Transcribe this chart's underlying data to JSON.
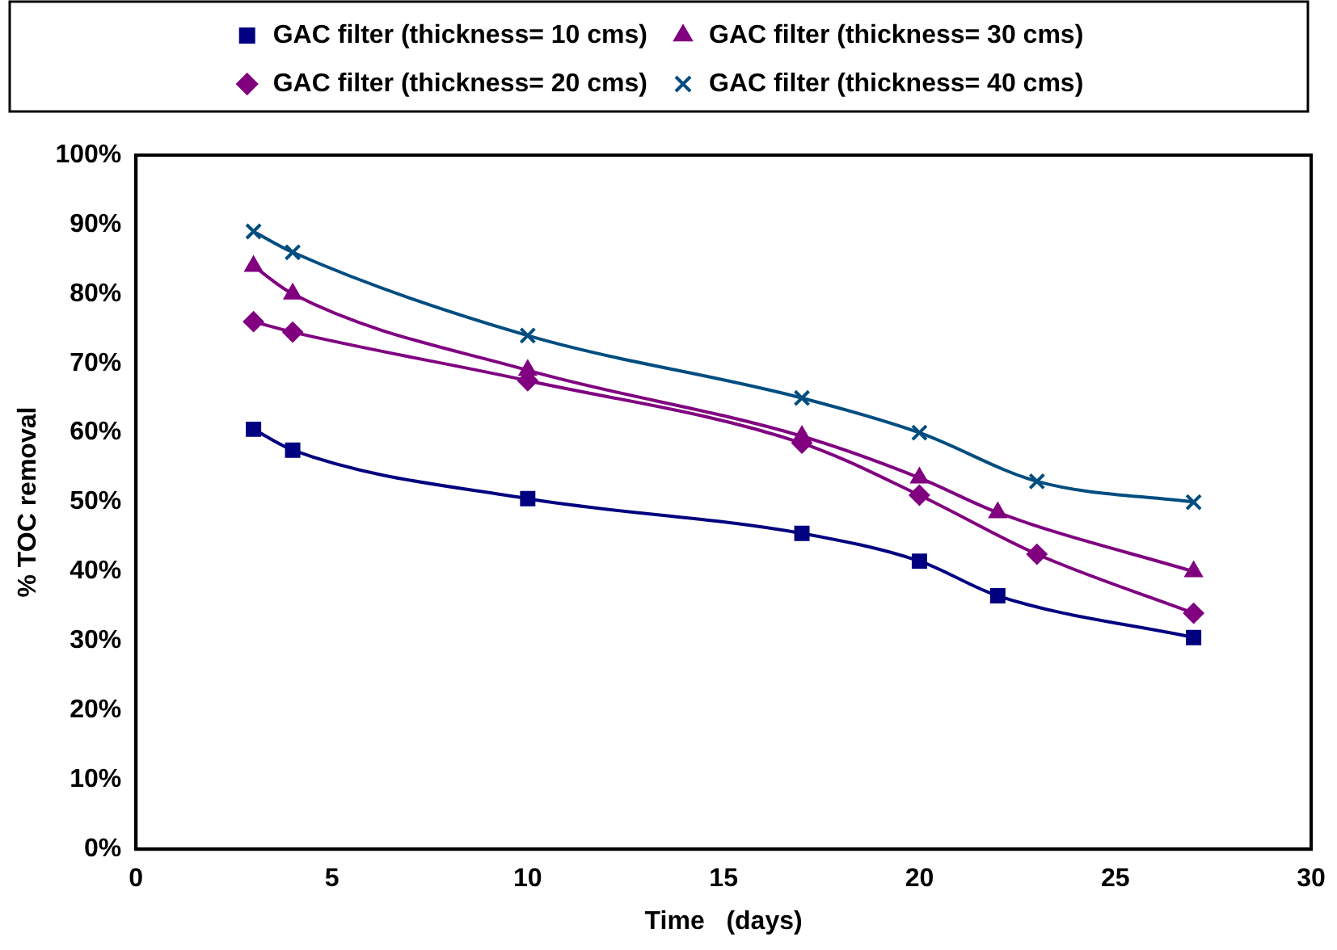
{
  "chart_data": {
    "type": "line",
    "xlabel": "Time   (days)",
    "ylabel": "% TOC removal",
    "legend": "top",
    "grid": false,
    "xlim": [
      0,
      30
    ],
    "xticks": [
      0,
      5,
      10,
      15,
      20,
      25,
      30
    ],
    "ylim": [
      0,
      1
    ],
    "yticks": [
      {
        "value": 0,
        "label": "0%"
      },
      {
        "value": 0.1,
        "label": "10%"
      },
      {
        "value": 0.2,
        "label": "20%"
      },
      {
        "value": 0.3,
        "label": "30%"
      },
      {
        "value": 0.4,
        "label": "40%"
      },
      {
        "value": 0.5,
        "label": "50%"
      },
      {
        "value": 0.6,
        "label": "60%"
      },
      {
        "value": 0.7,
        "label": "70%"
      },
      {
        "value": 0.8,
        "label": "80%"
      },
      {
        "value": 0.9,
        "label": "90%"
      },
      {
        "value": 1,
        "label": "100%"
      }
    ],
    "series": [
      {
        "name": "GAC filter (thickness= 10 cms)",
        "color": "#000080",
        "marker": "square",
        "x": [
          3,
          4,
          10,
          17,
          20,
          22,
          27
        ],
        "values": [
          0.605,
          0.575,
          0.505,
          0.455,
          0.415,
          0.365,
          0.305
        ]
      },
      {
        "name": "GAC filter (thickness= 30 cms)",
        "color": "#800080",
        "marker": "triangle",
        "x": [
          3,
          4,
          10,
          17,
          20,
          22,
          27
        ],
        "values": [
          0.84,
          0.8,
          0.69,
          0.595,
          0.535,
          0.485,
          0.4
        ]
      },
      {
        "name": "GAC filter (thickness= 20 cms)",
        "color": "#800080",
        "marker": "diamond",
        "x": [
          3,
          4,
          10,
          17,
          20,
          23,
          27
        ],
        "values": [
          0.76,
          0.745,
          0.675,
          0.585,
          0.51,
          0.425,
          0.34
        ]
      },
      {
        "name": "GAC filter (thickness= 40 cms)",
        "color": "#004d80",
        "marker": "cross",
        "x": [
          3,
          4,
          10,
          17,
          20,
          23,
          27
        ],
        "values": [
          0.89,
          0.86,
          0.74,
          0.65,
          0.6,
          0.53,
          0.5
        ]
      }
    ]
  }
}
